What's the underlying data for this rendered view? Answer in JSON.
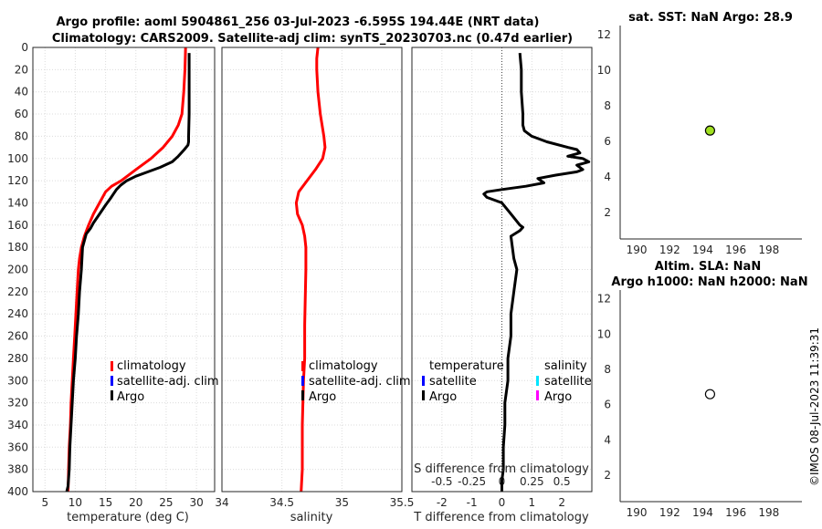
{
  "header": {
    "title_line1": "Argo profile: aoml 5904861_256 03-Jul-2023 -6.595S 194.44E (NRT data)",
    "title_line2": "Climatology: CARS2009. Satellite-adj clim: synTS_20230703.nc (0.47d earlier)"
  },
  "colors": {
    "climatology": "#ff0000",
    "satellite": "#0000ff",
    "argo": "#000000",
    "salinity_satellite": "#00e5ff",
    "salinity_argo": "#ff00ff",
    "sst_marker": "#a0e020"
  },
  "footer": {
    "timestamp": "©IMOS 08-Jul-2023 11:39:31"
  },
  "chart_data": [
    {
      "id": "temperature",
      "type": "line",
      "xlabel": "temperature (deg C)",
      "ylabel": "",
      "xlim": [
        3,
        33
      ],
      "ylim": [
        0,
        400
      ],
      "xticks": [
        5,
        10,
        15,
        20,
        25,
        30
      ],
      "yticks": [
        0,
        20,
        40,
        60,
        80,
        100,
        120,
        140,
        160,
        180,
        200,
        220,
        240,
        260,
        280,
        300,
        320,
        340,
        360,
        380,
        400
      ],
      "legend": [
        "climatology",
        "satellite-adj. clim",
        "Argo"
      ],
      "series": [
        {
          "name": "climatology",
          "color": "#ff0000",
          "x": [
            28.2,
            28.1,
            27.9,
            27.6,
            27,
            26,
            24.5,
            22.5,
            20,
            17.6,
            16,
            15,
            14,
            13,
            12.2,
            11.5,
            11,
            10.7,
            10.5,
            10.3,
            10.1,
            9.9,
            9.7,
            9.5,
            9.3,
            9.2,
            9,
            8.9,
            8.8
          ],
          "y": [
            0,
            20,
            40,
            60,
            70,
            80,
            90,
            100,
            110,
            120,
            125,
            130,
            140,
            150,
            160,
            170,
            180,
            190,
            200,
            220,
            240,
            260,
            280,
            300,
            320,
            340,
            360,
            380,
            400
          ]
        },
        {
          "name": "Argo",
          "color": "#000000",
          "x": [
            28.8,
            28.8,
            28.8,
            28.8,
            28.7,
            28.7,
            28.6,
            28,
            27,
            26,
            24,
            22,
            20,
            18.5,
            17.5,
            16.8,
            16.3,
            15.8,
            15,
            14,
            13,
            12.5,
            11.8,
            11.2,
            11,
            10.7,
            10.5,
            10.2,
            10,
            9.7,
            9.5,
            9.3,
            9.1,
            9,
            8.8,
            8.6
          ],
          "y": [
            5,
            20,
            40,
            60,
            80,
            85,
            88,
            92,
            98,
            103,
            108,
            112,
            116,
            120,
            124,
            128,
            132,
            136,
            142,
            150,
            158,
            163,
            168,
            180,
            200,
            220,
            240,
            260,
            280,
            300,
            320,
            340,
            360,
            380,
            395,
            400
          ]
        }
      ]
    },
    {
      "id": "salinity",
      "type": "line",
      "xlabel": "salinity",
      "xlim": [
        34,
        35.5
      ],
      "ylim": [
        0,
        400
      ],
      "xticks": [
        34,
        34.5,
        35,
        35.5
      ],
      "xtick_labels": [
        "34",
        "34.5",
        "35",
        "35.5"
      ],
      "legend": [
        "climatology",
        "satellite-adj. clim",
        "Argo"
      ],
      "series": [
        {
          "name": "climatology",
          "color": "#ff0000",
          "x": [
            34.8,
            34.79,
            34.79,
            34.8,
            34.82,
            34.85,
            34.86,
            34.84,
            34.78,
            34.71,
            34.64,
            34.62,
            34.63,
            34.67,
            34.69,
            34.7,
            34.7,
            34.69,
            34.69,
            34.68,
            34.67,
            34.67,
            34.66
          ],
          "y": [
            0,
            10,
            20,
            40,
            60,
            80,
            90,
            100,
            110,
            120,
            130,
            140,
            150,
            160,
            170,
            180,
            200,
            250,
            280,
            300,
            340,
            380,
            400
          ]
        }
      ]
    },
    {
      "id": "difference",
      "type": "line",
      "xlabel": "T difference from climatology",
      "xlabel2": "S difference from climatology",
      "xlim": [
        -3,
        3
      ],
      "ylim": [
        0,
        400
      ],
      "xticks": [
        -2,
        -1,
        0,
        1,
        2
      ],
      "xticks_s": [
        -0.5,
        -0.25,
        0,
        0.25,
        0.5
      ],
      "xtick_labels_s": [
        "-0.5",
        "-0.25",
        "0",
        "0.25",
        "0.5"
      ],
      "legend_temperature": [
        "temperature",
        "satellite",
        "Argo"
      ],
      "legend_salinity": [
        "salinity",
        "satellite",
        "Argo"
      ],
      "series": [
        {
          "name": "Argo T diff",
          "color": "#000000",
          "x": [
            0.6,
            0.65,
            0.65,
            0.7,
            0.7,
            0.75,
            1.0,
            1.5,
            2.2,
            2.5,
            2.6,
            2.2,
            2.7,
            2.9,
            2.5,
            2.7,
            2.5,
            1.8,
            1.2,
            1.4,
            0.8,
            0,
            -0.5,
            -0.6,
            -0.5,
            0,
            0.3,
            0.6,
            0.7,
            0.6,
            0.3,
            0.4,
            0.5,
            0.4,
            0.3,
            0.3,
            0.2,
            0.2,
            0.1,
            0.1,
            0.05,
            0.05,
            0,
            0
          ],
          "y": [
            5,
            20,
            40,
            60,
            70,
            75,
            80,
            85,
            90,
            92,
            95,
            98,
            100,
            103,
            106,
            110,
            112,
            115,
            118,
            122,
            125,
            128,
            130,
            132,
            135,
            140,
            150,
            160,
            162,
            165,
            170,
            190,
            200,
            220,
            240,
            260,
            280,
            300,
            320,
            340,
            360,
            380,
            390,
            400
          ]
        }
      ]
    },
    {
      "id": "sst",
      "type": "scatter",
      "title": "sat. SST: NaN Argo: 28.9",
      "xlim": [
        189,
        200
      ],
      "ylim": [
        0.5,
        12.5
      ],
      "xticks": [
        190,
        192,
        194,
        196,
        198
      ],
      "yticks": [
        2,
        4,
        6,
        8,
        10,
        12
      ],
      "points": [
        {
          "x": 194.44,
          "y": 6.595,
          "color": "#a0e020"
        }
      ]
    },
    {
      "id": "sla",
      "type": "scatter",
      "title_line1": "Altim. SLA: NaN",
      "title_line2": "Argo h1000: NaN h2000: NaN",
      "xlim": [
        189,
        200
      ],
      "ylim": [
        0.5,
        12.5
      ],
      "xticks": [
        190,
        192,
        194,
        196,
        198
      ],
      "yticks": [
        2,
        4,
        6,
        8,
        10,
        12
      ],
      "points": [
        {
          "x": 194.44,
          "y": 6.595,
          "color": "#ffffff"
        }
      ]
    }
  ]
}
